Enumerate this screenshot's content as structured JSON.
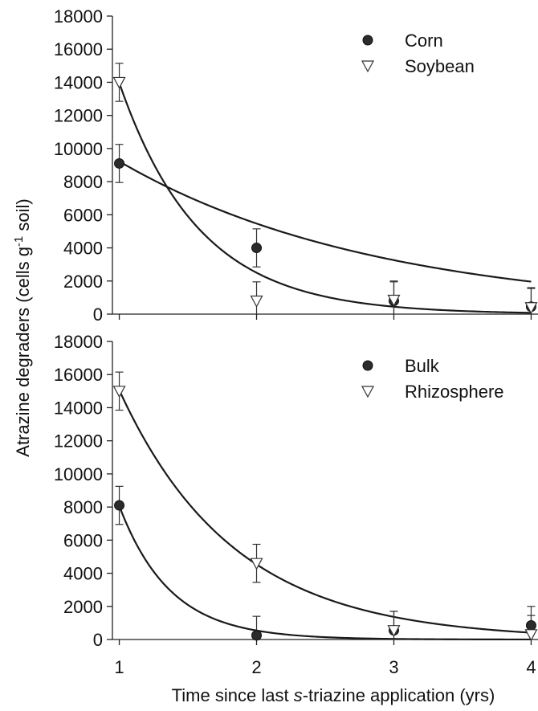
{
  "chart_data": [
    {
      "type": "scatter",
      "panel": "top",
      "x": [
        1,
        2,
        3,
        4
      ],
      "xlim": [
        0.95,
        4.05
      ],
      "ylim": [
        0,
        18000
      ],
      "yticks": [
        0,
        2000,
        4000,
        6000,
        8000,
        10000,
        12000,
        14000,
        16000,
        18000
      ],
      "legend_position": "top-right",
      "series": [
        {
          "name": "Corn",
          "marker": "filled-circle",
          "values": [
            9100,
            4000,
            800,
            450
          ],
          "errors": [
            1150,
            1150,
            1150,
            1150
          ],
          "fit": {
            "a": 15500,
            "k": 0.53,
            "offset": 100
          }
        },
        {
          "name": "Soybean",
          "marker": "open-triangle-down",
          "values": [
            14000,
            800,
            850,
            400
          ],
          "errors": [
            1150,
            1150,
            1150,
            1150
          ],
          "fit": {
            "a": 78000,
            "k": 1.72,
            "offset": 0
          }
        }
      ]
    },
    {
      "type": "scatter",
      "panel": "bottom",
      "x": [
        1,
        2,
        3,
        4
      ],
      "xlim": [
        0.95,
        4.05
      ],
      "ylim": [
        0,
        18000
      ],
      "yticks": [
        0,
        2000,
        4000,
        6000,
        8000,
        10000,
        12000,
        14000,
        16000,
        18000
      ],
      "xticks": [
        1,
        2,
        3,
        4
      ],
      "legend_position": "top-right",
      "series": [
        {
          "name": "Bulk",
          "marker": "filled-circle",
          "values": [
            8100,
            250,
            550,
            850
          ],
          "errors": [
            1150,
            1150,
            1150,
            1150
          ],
          "fit": {
            "a": 120000,
            "k": 2.7,
            "offset": 0
          }
        },
        {
          "name": "Rhizosphere",
          "marker": "open-triangle-down",
          "values": [
            15000,
            4600,
            550,
            300
          ],
          "errors": [
            1150,
            1150,
            1150,
            1150
          ],
          "fit": {
            "a": 50000,
            "k": 1.2,
            "offset": 0
          }
        }
      ]
    }
  ],
  "labels": {
    "ylabel_main": "Atrazine degraders (cells g",
    "ylabel_sup": "-1",
    "ylabel_end": " soil)",
    "xlabel_pre": "Time since last ",
    "xlabel_ital": "s",
    "xlabel_post": "-triazine application (yrs)"
  },
  "colors": {
    "marker_fill": "#2b2b2b",
    "line": "#1a1a1a"
  }
}
